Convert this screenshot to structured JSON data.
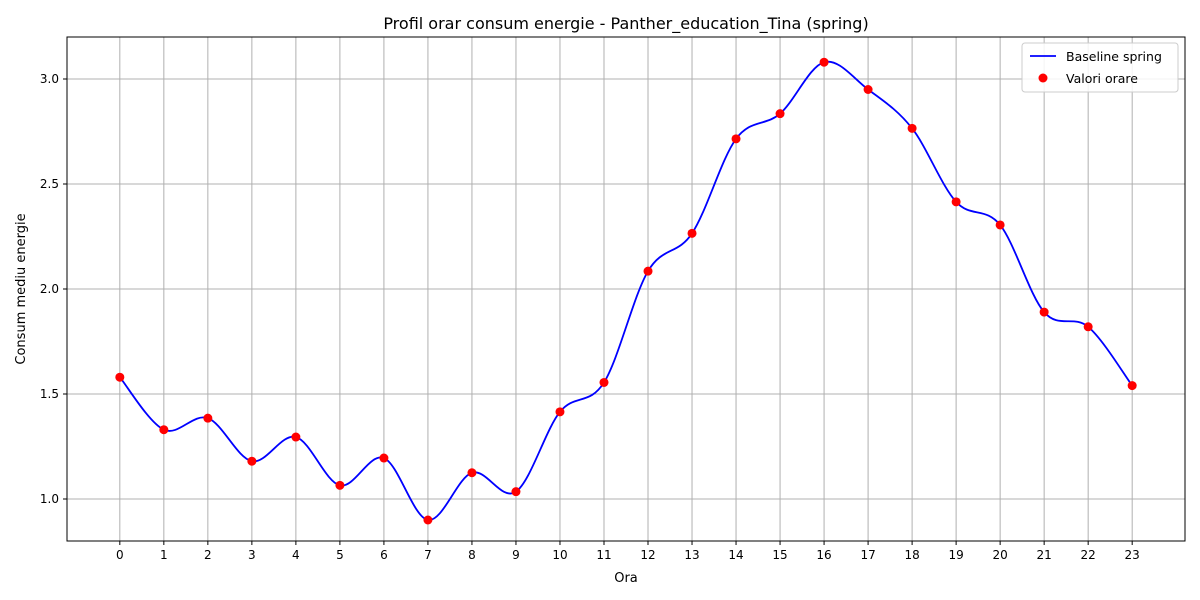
{
  "chart_data": {
    "type": "line",
    "title": "Profil orar consum energie - Panther_education_Tina (spring)",
    "xlabel": "Ora",
    "ylabel": "Consum mediu energie",
    "x": [
      0,
      1,
      2,
      3,
      4,
      5,
      6,
      7,
      8,
      9,
      10,
      11,
      12,
      13,
      14,
      15,
      16,
      17,
      18,
      19,
      20,
      21,
      22,
      23
    ],
    "xlim": [
      -1.2,
      24.2
    ],
    "ylim": [
      0.8,
      3.2
    ],
    "xticks": [
      "0",
      "1",
      "2",
      "3",
      "4",
      "5",
      "6",
      "7",
      "8",
      "9",
      "10",
      "11",
      "12",
      "13",
      "14",
      "15",
      "16",
      "17",
      "18",
      "19",
      "20",
      "21",
      "22",
      "23"
    ],
    "yticks": [
      "1.0",
      "1.5",
      "2.0",
      "2.5",
      "3.0"
    ],
    "ytick_values": [
      1.0,
      1.5,
      2.0,
      2.5,
      3.0
    ],
    "grid": true,
    "legend_position": "top-right",
    "series": [
      {
        "name": "Baseline spring",
        "kind": "smooth-line",
        "color": "#0000ff",
        "values": [
          1.58,
          1.33,
          1.385,
          1.18,
          1.295,
          1.065,
          1.195,
          0.9,
          1.125,
          1.035,
          1.415,
          1.555,
          2.085,
          2.265,
          2.715,
          2.835,
          3.08,
          2.95,
          2.765,
          2.415,
          2.305,
          1.89,
          1.82,
          1.54
        ]
      },
      {
        "name": "Valori orare",
        "kind": "scatter",
        "color": "#ff0000",
        "values": [
          1.58,
          1.33,
          1.385,
          1.18,
          1.295,
          1.065,
          1.195,
          0.9,
          1.125,
          1.035,
          1.415,
          1.555,
          2.085,
          2.265,
          2.715,
          2.835,
          3.08,
          2.95,
          2.765,
          2.415,
          2.305,
          1.89,
          1.82,
          1.54
        ]
      }
    ]
  }
}
